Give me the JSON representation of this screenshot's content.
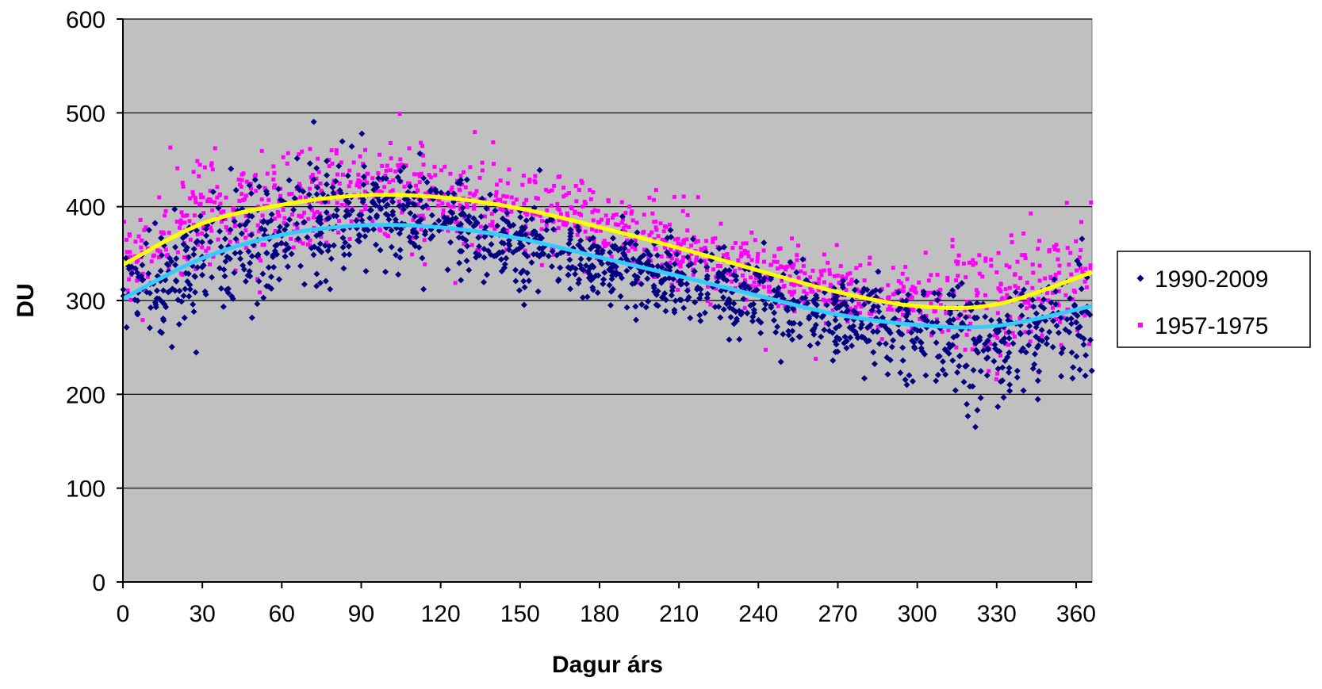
{
  "chart_data": {
    "type": "scatter",
    "xlabel": "Dagur árs",
    "ylabel": "DU",
    "xlim": [
      0,
      366
    ],
    "ylim": [
      0,
      600
    ],
    "xticks": [
      0,
      30,
      60,
      90,
      120,
      150,
      180,
      210,
      240,
      270,
      300,
      330,
      360
    ],
    "yticks": [
      0,
      100,
      200,
      300,
      400,
      500,
      600
    ],
    "grid": "horizontal",
    "legend_position": "right",
    "plot_background": "#c0c0c0",
    "series": [
      {
        "name": "1990-2009",
        "marker": "diamond",
        "color": "#000080",
        "trend_color": "#33ccff",
        "trend": [
          [
            0,
            302
          ],
          [
            30,
            345
          ],
          [
            60,
            370
          ],
          [
            90,
            380
          ],
          [
            120,
            378
          ],
          [
            150,
            366
          ],
          [
            180,
            346
          ],
          [
            210,
            326
          ],
          [
            240,
            305
          ],
          [
            270,
            285
          ],
          [
            300,
            274
          ],
          [
            330,
            273
          ],
          [
            366,
            294
          ]
        ],
        "scatter_profile": [
          [
            0,
            305,
            40
          ],
          [
            30,
            340,
            60
          ],
          [
            60,
            375,
            65
          ],
          [
            90,
            395,
            55
          ],
          [
            120,
            385,
            45
          ],
          [
            150,
            365,
            40
          ],
          [
            180,
            340,
            35
          ],
          [
            210,
            320,
            35
          ],
          [
            240,
            300,
            40
          ],
          [
            270,
            285,
            40
          ],
          [
            300,
            265,
            45
          ],
          [
            330,
            255,
            55
          ],
          [
            366,
            285,
            60
          ]
        ],
        "point_count": 1400
      },
      {
        "name": "1957-1975",
        "marker": "square",
        "color": "#ff00ff",
        "trend_color": "#ffff00",
        "trend": [
          [
            0,
            338
          ],
          [
            30,
            382
          ],
          [
            60,
            402
          ],
          [
            90,
            412
          ],
          [
            120,
            410
          ],
          [
            150,
            398
          ],
          [
            180,
            378
          ],
          [
            210,
            356
          ],
          [
            240,
            332
          ],
          [
            270,
            309
          ],
          [
            300,
            294
          ],
          [
            330,
            296
          ],
          [
            366,
            330
          ]
        ],
        "scatter_profile": [
          [
            0,
            340,
            45
          ],
          [
            30,
            385,
            55
          ],
          [
            60,
            405,
            55
          ],
          [
            90,
            420,
            50
          ],
          [
            120,
            415,
            45
          ],
          [
            150,
            400,
            40
          ],
          [
            180,
            380,
            35
          ],
          [
            210,
            355,
            35
          ],
          [
            240,
            330,
            35
          ],
          [
            270,
            310,
            35
          ],
          [
            300,
            295,
            40
          ],
          [
            330,
            300,
            60
          ],
          [
            366,
            330,
            65
          ]
        ],
        "point_count": 1300
      }
    ]
  }
}
